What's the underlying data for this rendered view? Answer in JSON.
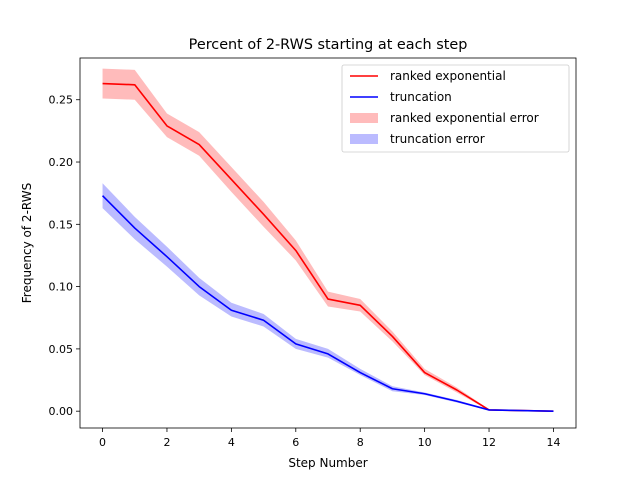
{
  "chart_data": {
    "type": "line",
    "title": "Percent of 2-RWS starting at each step",
    "xlabel": "Step Number",
    "ylabel": "Frequency of 2-RWS",
    "xlim": [
      -0.7,
      14.7
    ],
    "ylim": [
      -0.0135,
      0.2835
    ],
    "xticks": [
      0,
      2,
      4,
      6,
      8,
      10,
      12,
      14
    ],
    "yticks": [
      0.0,
      0.05,
      0.1,
      0.15,
      0.2,
      0.25
    ],
    "xtick_labels": [
      "0",
      "2",
      "4",
      "6",
      "8",
      "10",
      "12",
      "14"
    ],
    "ytick_labels": [
      "0.00",
      "0.05",
      "0.10",
      "0.15",
      "0.20",
      "0.25"
    ],
    "grid": false,
    "legend_position": "top-right",
    "x": [
      0,
      1,
      2,
      3,
      4,
      5,
      6,
      7,
      8,
      9,
      10,
      11,
      12,
      13,
      14
    ],
    "series": [
      {
        "name": "ranked exponential",
        "color": "#ff0000",
        "values": [
          0.263,
          0.262,
          0.229,
          0.214,
          0.186,
          0.158,
          0.129,
          0.09,
          0.085,
          0.06,
          0.031,
          0.017,
          0.001,
          0.0005,
          0.0
        ],
        "lower": [
          0.251,
          0.25,
          0.22,
          0.205,
          0.176,
          0.148,
          0.121,
          0.084,
          0.08,
          0.056,
          0.029,
          0.015,
          0.0005,
          0.0003,
          0.0
        ],
        "upper": [
          0.275,
          0.274,
          0.239,
          0.224,
          0.196,
          0.168,
          0.137,
          0.096,
          0.09,
          0.064,
          0.034,
          0.019,
          0.0015,
          0.0008,
          0.0002
        ],
        "error_name": "ranked exponential error",
        "error_color": "#ffbbbb"
      },
      {
        "name": "truncation",
        "color": "#0000ff",
        "values": [
          0.173,
          0.147,
          0.124,
          0.1,
          0.081,
          0.073,
          0.054,
          0.046,
          0.031,
          0.018,
          0.014,
          0.008,
          0.001,
          0.0005,
          0.0
        ],
        "lower": [
          0.163,
          0.138,
          0.116,
          0.093,
          0.076,
          0.068,
          0.05,
          0.043,
          0.029,
          0.016,
          0.013,
          0.007,
          0.0005,
          0.0003,
          0.0
        ],
        "upper": [
          0.183,
          0.156,
          0.132,
          0.107,
          0.087,
          0.078,
          0.058,
          0.05,
          0.034,
          0.02,
          0.015,
          0.009,
          0.0015,
          0.0008,
          0.0002
        ],
        "error_name": "truncation error",
        "error_color": "#bbbbff"
      }
    ]
  }
}
